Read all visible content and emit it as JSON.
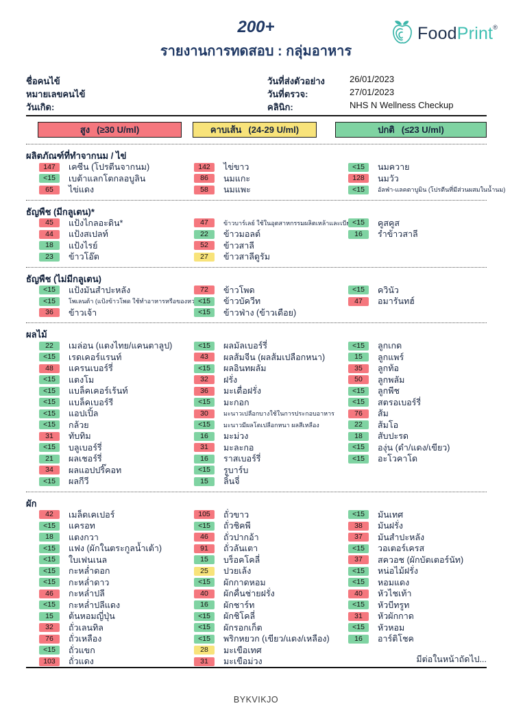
{
  "header": {
    "title": "200+",
    "subtitle": "รายงานการทดสอบ : กลุ่มอาหาร",
    "logo": {
      "food": "Food",
      "print": "Print",
      "registered": "®",
      "teal": "#3fbfb2",
      "navy": "#20324f"
    }
  },
  "patient": {
    "left": [
      {
        "label": "ชื่อคนไข้",
        "value": ""
      },
      {
        "label": "หมายเลขคนไข้",
        "value": ""
      },
      {
        "label": "วันเกิด:",
        "value": ""
      }
    ],
    "right": [
      {
        "label": "วันที่ส่งตัวอย่าง",
        "value": "26/01/2023"
      },
      {
        "label": "วันที่ตรวจ:",
        "value": "27/01/2023"
      },
      {
        "label": "คลินิก:",
        "value": "NHS N Wellness Checkup"
      }
    ]
  },
  "legend": [
    {
      "label": "สูง",
      "range": "(≥30 U/ml)",
      "color": "#f5777e"
    },
    {
      "label": "คาบเส้น",
      "range": "(24-29 U/ml)",
      "color": "#f8e37a"
    },
    {
      "label": "ปกติ",
      "range": "(≤23 U/ml)",
      "color": "#7fd3a2"
    }
  ],
  "levels": {
    "high": "#f5777e",
    "borderline": "#f8e37a",
    "normal": "#7fd3a2"
  },
  "sections": [
    {
      "title": "ผลิตภัณฑ์ที่ทำจากนม / ไข่",
      "columns": [
        [
          {
            "v": "147",
            "level": "high",
            "label": "เคซีน (โปรตีนจากนม)"
          },
          {
            "v": "<15",
            "level": "normal",
            "label": "เบต้าแลกโตกลอบูลิน"
          },
          {
            "v": "65",
            "level": "high",
            "label": "ไข่แดง"
          }
        ],
        [
          {
            "v": "142",
            "level": "high",
            "label": "ไข่ขาว"
          },
          {
            "v": "86",
            "level": "high",
            "label": "นมแกะ"
          },
          {
            "v": "58",
            "level": "high",
            "label": "นมแพะ"
          }
        ],
        [
          {
            "v": "<15",
            "level": "normal",
            "label": "นมควาย"
          },
          {
            "v": "128",
            "level": "high",
            "label": "นมวัว"
          },
          {
            "v": "<15",
            "level": "normal",
            "label": "อัลฟ่า-แลคตาบูมิน (โปรตีนที่มีส่วนผสมในน้ำนม)",
            "small": true
          }
        ]
      ]
    },
    {
      "title": "ธัญพืช (มีกลูเตน)*",
      "columns": [
        [
          {
            "v": "45",
            "level": "high",
            "label": "แป้งไกลอะดิน*"
          },
          {
            "v": "44",
            "level": "high",
            "label": "แป้งสเปลท์"
          },
          {
            "v": "18",
            "level": "normal",
            "label": "แป้งไรย์"
          },
          {
            "v": "23",
            "level": "normal",
            "label": "ข้าวโอ๊ต"
          }
        ],
        [
          {
            "v": "47",
            "level": "high",
            "label": "ข้าวบาร์เลย์ ใช้ในอุตสาหกรรมผลิตเหล้าและเบียร์",
            "small": true
          },
          {
            "v": "22",
            "level": "normal",
            "label": "ข้าวมอลต์"
          },
          {
            "v": "52",
            "level": "high",
            "label": "ข้าวสาลี"
          },
          {
            "v": "27",
            "level": "borderline",
            "label": "ข้าวสาลีดูรัม"
          }
        ],
        [
          {
            "v": "<15",
            "level": "normal",
            "label": "คูสคูส"
          },
          {
            "v": "16",
            "level": "normal",
            "label": "รำข้าวสาลี"
          }
        ]
      ]
    },
    {
      "title": "ธัญพืช (ไม่มีกลูเตน)",
      "columns": [
        [
          {
            "v": "<15",
            "level": "normal",
            "label": "แป้งมันสำปะหลัง"
          },
          {
            "v": "<15",
            "level": "normal",
            "label": "โพเลนต้า (แป้งข้าวโพด ใช้ทำอาหารหรือของหวาน)",
            "small": true
          },
          {
            "v": "36",
            "level": "high",
            "label": "ข้าวเจ้า"
          }
        ],
        [
          {
            "v": "72",
            "level": "high",
            "label": "ข้าวโพด"
          },
          {
            "v": "<15",
            "level": "normal",
            "label": "ข้าวบัควีท"
          },
          {
            "v": "<15",
            "level": "normal",
            "label": "ข้าวฟ่าง (ข้าวเดือย)"
          }
        ],
        [
          {
            "v": "<15",
            "level": "normal",
            "label": "ควินัว"
          },
          {
            "v": "47",
            "level": "high",
            "label": "อมารันทฮ์"
          }
        ]
      ]
    },
    {
      "title": "ผลไม้",
      "columns": [
        [
          {
            "v": "22",
            "level": "normal",
            "label": "เมล่อน (แตงไทย/แคนตาลูป)"
          },
          {
            "v": "<15",
            "level": "normal",
            "label": "เรดเคอร์แรนท์"
          },
          {
            "v": "48",
            "level": "high",
            "label": "แครนเบอร์รี่"
          },
          {
            "v": "<15",
            "level": "normal",
            "label": "แตงโม"
          },
          {
            "v": "<15",
            "level": "normal",
            "label": "แบล็คเคอร์เร้นท์"
          },
          {
            "v": "<15",
            "level": "normal",
            "label": "แบล็คเบอร์รี"
          },
          {
            "v": "<15",
            "level": "normal",
            "label": "แอปเปิ้ล"
          },
          {
            "v": "<15",
            "level": "normal",
            "label": "กล้วย"
          },
          {
            "v": "31",
            "level": "high",
            "label": "ทับทิม"
          },
          {
            "v": "<15",
            "level": "normal",
            "label": "บลูเบอร์รี่"
          },
          {
            "v": "21",
            "level": "normal",
            "label": "ผลเชอร์รี่"
          },
          {
            "v": "34",
            "level": "high",
            "label": "ผลแอปปริ๊คอท"
          },
          {
            "v": "<15",
            "level": "normal",
            "label": "ผลกีวี"
          }
        ],
        [
          {
            "v": "<15",
            "level": "normal",
            "label": "ผลมัลเบอร์รี่"
          },
          {
            "v": "43",
            "level": "high",
            "label": "ผลส้มจีน (ผลส้มเปลือกหนา)"
          },
          {
            "v": "<15",
            "level": "normal",
            "label": "ผลอินทผลัม"
          },
          {
            "v": "32",
            "level": "high",
            "label": "ฝรั่ง"
          },
          {
            "v": "36",
            "level": "high",
            "label": "มะเดื่อฝรั่ง"
          },
          {
            "v": "<15",
            "level": "normal",
            "label": "มะกอก"
          },
          {
            "v": "30",
            "level": "high",
            "label": "มะนาวเปลือกบางใช้ในการประกอบอาหาร",
            "small": true
          },
          {
            "v": "<15",
            "level": "normal",
            "label": "มะนาวมีผลโตเปลือกหนา ผลสีเหลือง",
            "small": true
          },
          {
            "v": "16",
            "level": "normal",
            "label": "มะม่วง"
          },
          {
            "v": "31",
            "level": "high",
            "label": "มะละกอ"
          },
          {
            "v": "16",
            "level": "normal",
            "label": "ราสเบอร์รี่"
          },
          {
            "v": "<15",
            "level": "normal",
            "label": "รูบาร์บ"
          },
          {
            "v": "15",
            "level": "normal",
            "label": "ลิ้นจี่"
          }
        ],
        [
          {
            "v": "<15",
            "level": "normal",
            "label": "ลูกเกด"
          },
          {
            "v": "15",
            "level": "normal",
            "label": "ลูกแพร์"
          },
          {
            "v": "35",
            "level": "high",
            "label": "ลูกท้อ"
          },
          {
            "v": "50",
            "level": "high",
            "label": "ลูกพลัม"
          },
          {
            "v": "<15",
            "level": "normal",
            "label": "ลูกพีช"
          },
          {
            "v": "<15",
            "level": "normal",
            "label": "สตรอเบอร์รี่"
          },
          {
            "v": "76",
            "level": "high",
            "label": "ส้ม"
          },
          {
            "v": "22",
            "level": "normal",
            "label": "ส้มโอ"
          },
          {
            "v": "18",
            "level": "normal",
            "label": "สับปะรด"
          },
          {
            "v": "<15",
            "level": "normal",
            "label": "องุ่น (ดำ/แดง/เขียว)"
          },
          {
            "v": "<15",
            "level": "normal",
            "label": "อะโวคาโด"
          }
        ]
      ]
    },
    {
      "title": "ผัก",
      "columns": [
        [
          {
            "v": "42",
            "level": "high",
            "label": "เมล็ดเคเปอร์"
          },
          {
            "v": "<15",
            "level": "normal",
            "label": "แครอท"
          },
          {
            "v": "18",
            "level": "normal",
            "label": "แตงกวา"
          },
          {
            "v": "<15",
            "level": "normal",
            "label": "แฟง (ผักในตระกูลน้ำเต้า)"
          },
          {
            "v": "<15",
            "level": "normal",
            "label": "ใบเฟนเนล"
          },
          {
            "v": "<15",
            "level": "normal",
            "label": "กะหล่ำดอก"
          },
          {
            "v": "<15",
            "level": "normal",
            "label": "กะหล่ำดาว"
          },
          {
            "v": "46",
            "level": "high",
            "label": "กะหล่ำปลี"
          },
          {
            "v": "<15",
            "level": "normal",
            "label": "กะหล่ำปลีแดง"
          },
          {
            "v": "15",
            "level": "normal",
            "label": "ต้นหอมญี่ปุ่น"
          },
          {
            "v": "32",
            "level": "high",
            "label": "ถั่วเลนทิล"
          },
          {
            "v": "76",
            "level": "high",
            "label": "ถั่วเหลือง"
          },
          {
            "v": "<15",
            "level": "normal",
            "label": "ถั่วแขก"
          },
          {
            "v": "103",
            "level": "high",
            "label": "ถั่วแดง"
          }
        ],
        [
          {
            "v": "105",
            "level": "high",
            "label": "ถั่วขาว"
          },
          {
            "v": "<15",
            "level": "normal",
            "label": "ถั่วชิคพี"
          },
          {
            "v": "46",
            "level": "high",
            "label": "ถั่วปากอ้า"
          },
          {
            "v": "91",
            "level": "high",
            "label": "ถั่วลันเตา"
          },
          {
            "v": "15",
            "level": "normal",
            "label": "บร็อคโคลี่"
          },
          {
            "v": "25",
            "level": "borderline",
            "label": "ปวยเล้ง"
          },
          {
            "v": "<15",
            "level": "normal",
            "label": "ผักกาดหอม"
          },
          {
            "v": "40",
            "level": "high",
            "label": "ผักคื่นช่ายฝรั่ง"
          },
          {
            "v": "16",
            "level": "normal",
            "label": "ผักชาร์ท"
          },
          {
            "v": "<15",
            "level": "normal",
            "label": "ผักชิโคลี่"
          },
          {
            "v": "<15",
            "level": "normal",
            "label": "ผักรอกเก็ต"
          },
          {
            "v": "<15",
            "level": "normal",
            "label": "พริกหยวก (เขียว/แดง/เหลือง)"
          },
          {
            "v": "28",
            "level": "borderline",
            "label": "มะเขือเทศ"
          },
          {
            "v": "31",
            "level": "high",
            "label": "มะเขือม่วง"
          }
        ],
        [
          {
            "v": "<15",
            "level": "normal",
            "label": "มันเทศ"
          },
          {
            "v": "38",
            "level": "high",
            "label": "มันฝรั่ง"
          },
          {
            "v": "37",
            "level": "high",
            "label": "มันสำปะหลัง"
          },
          {
            "v": "<15",
            "level": "normal",
            "label": "วอเตอร์เครส"
          },
          {
            "v": "37",
            "level": "high",
            "label": "สควอช (ผักบัตเตอร์นัท)"
          },
          {
            "v": "<15",
            "level": "normal",
            "label": "หน่อไม้ฝรั่ง"
          },
          {
            "v": "<15",
            "level": "normal",
            "label": "หอมแดง"
          },
          {
            "v": "40",
            "level": "high",
            "label": "หัวไชเท้า"
          },
          {
            "v": "<15",
            "level": "normal",
            "label": "หัวบีทรูท"
          },
          {
            "v": "31",
            "level": "high",
            "label": "หัวผักกาด"
          },
          {
            "v": "<15",
            "level": "normal",
            "label": "หัวหอม"
          },
          {
            "v": "16",
            "level": "normal",
            "label": "อาร์ติโชค"
          }
        ]
      ]
    }
  ],
  "footer": {
    "continued": "มีต่อในหน้าถัดไป...",
    "code": "BYKVIKJO"
  }
}
